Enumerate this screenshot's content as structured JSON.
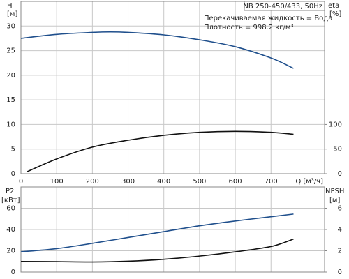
{
  "chart_data": [
    {
      "type": "line",
      "title": "NB 250-450/433, 50Hz",
      "annotations": [
        "Перекачиваемая жидкость = Вода",
        "Плотность = 998.2 кг/м³"
      ],
      "y_label": "H",
      "y_unit": "[м]",
      "y2_label": "eta",
      "y2_unit": "[%]",
      "x_label": "Q [м³/ч]",
      "xlim": [
        0,
        850
      ],
      "xticks": [
        0,
        100,
        200,
        300,
        400,
        500,
        600,
        700
      ],
      "ylim": [
        0,
        35
      ],
      "yticks": [
        0,
        5,
        10,
        15,
        20,
        25,
        30
      ],
      "y2lim": [
        0,
        350
      ],
      "y2ticks": [
        0,
        50,
        100
      ],
      "grid": true,
      "series": [
        {
          "name": "H",
          "color": "#1f4f8c",
          "x": [
            0,
            100,
            200,
            250,
            300,
            400,
            500,
            600,
            700,
            763
          ],
          "values": [
            27.5,
            28.3,
            28.7,
            28.8,
            28.7,
            28.2,
            27.2,
            25.8,
            23.5,
            21.4
          ]
        },
        {
          "name": "eta",
          "color": "#111111",
          "axis": "y2",
          "x": [
            17,
            100,
            200,
            300,
            400,
            500,
            600,
            700,
            763
          ],
          "values": [
            4,
            30,
            54,
            68,
            78,
            84,
            86,
            84,
            80
          ]
        }
      ]
    },
    {
      "type": "line",
      "y_label": "P2",
      "y_unit": "[кВт]",
      "y2_label": "NPSH",
      "y2_unit": "[м]",
      "xlim": [
        0,
        850
      ],
      "xticks": [
        0,
        100,
        200,
        300,
        400,
        500,
        600,
        700
      ],
      "ylim": [
        0,
        80
      ],
      "yticks": [
        0,
        20,
        40,
        60
      ],
      "y2lim": [
        0,
        8
      ],
      "y2ticks": [
        0,
        2,
        4,
        6
      ],
      "grid": true,
      "series": [
        {
          "name": "P2",
          "color": "#1f4f8c",
          "x": [
            0,
            100,
            200,
            300,
            400,
            500,
            600,
            700,
            763
          ],
          "values": [
            19,
            22,
            27,
            32.5,
            38,
            43.5,
            48,
            52,
            54.5
          ]
        },
        {
          "name": "NPSH",
          "color": "#111111",
          "axis": "y2",
          "x": [
            0,
            100,
            200,
            300,
            400,
            500,
            600,
            700,
            763
          ],
          "values": [
            1.0,
            0.98,
            0.95,
            1.02,
            1.2,
            1.5,
            1.9,
            2.4,
            3.1
          ]
        }
      ]
    }
  ]
}
